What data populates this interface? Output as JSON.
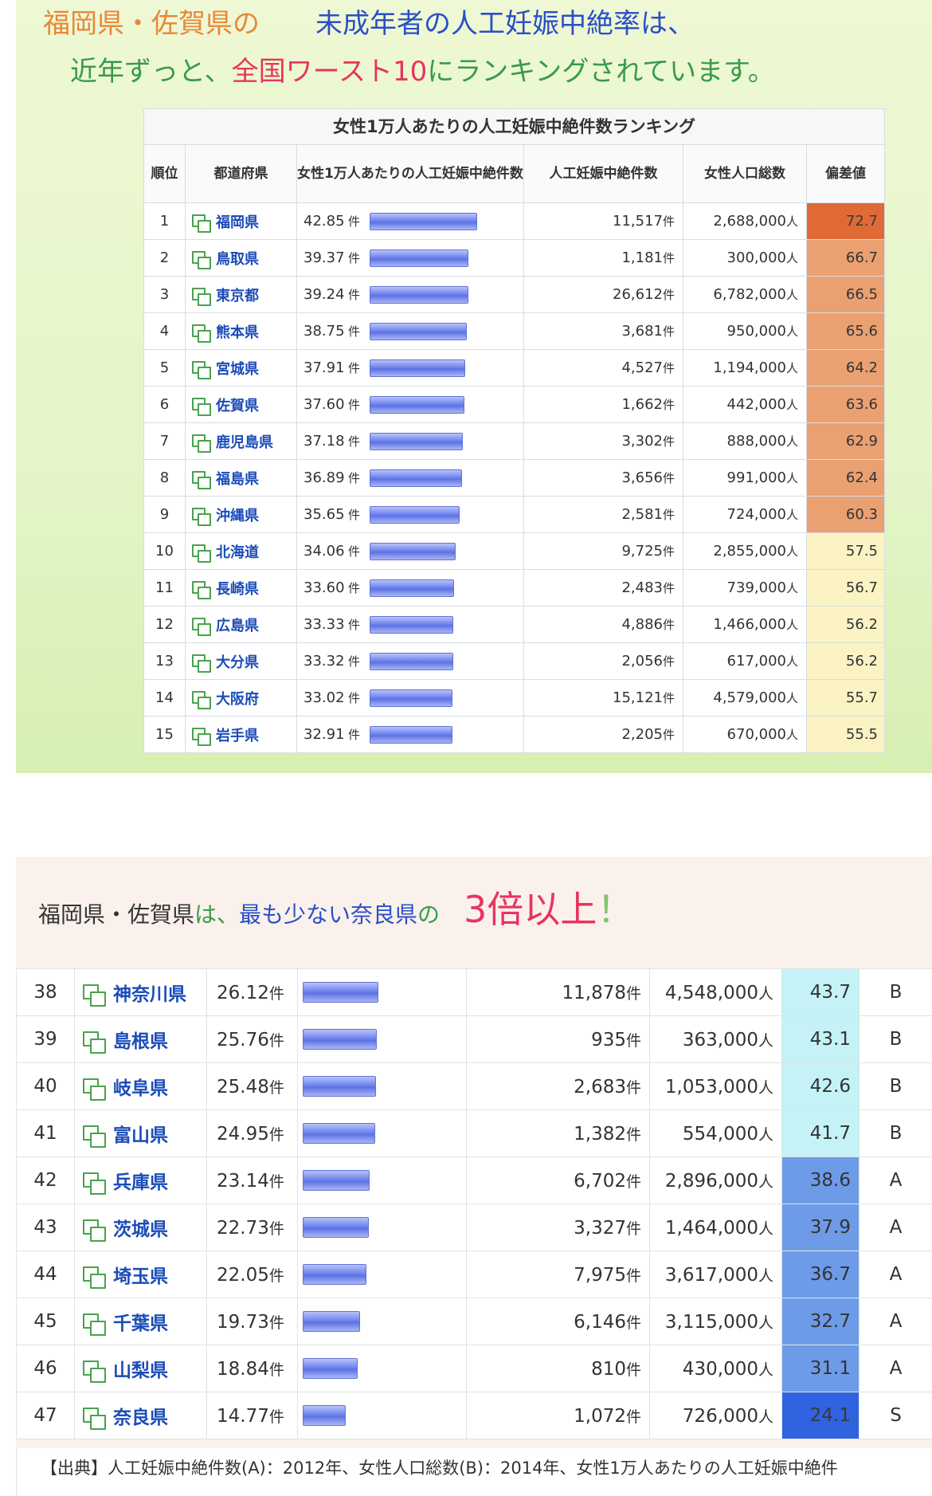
{
  "headline": {
    "line1": [
      {
        "text": "福岡県・佐賀県の",
        "color": "#e8873a"
      },
      {
        "text": "未成年者の人工妊娠中絶率は、",
        "color": "#2a4fc7"
      }
    ],
    "line2": [
      {
        "text": "近年ずっと、",
        "color": "#3a9a4a"
      },
      {
        "text": "全国ワースト10",
        "color": "#e8345f"
      },
      {
        "text": "にランキングされています。",
        "color": "#3a9a4a"
      }
    ]
  },
  "ranking_table_top": {
    "caption": "女性1万人あたりの人工妊娠中絶件数ランキング",
    "headers": {
      "rank": "順位",
      "prefecture": "都道府県",
      "rate": "女性1万人あたりの人工妊娠中絶件数",
      "count": "人工妊娠中絶件数",
      "population": "女性人口総数",
      "deviation": "偏差値"
    },
    "rows": [
      {
        "rank": "1",
        "pref": "福岡県",
        "rate": "42.85",
        "rate_value": 42.85,
        "count": "11,517",
        "pop": "2,688,000",
        "dev": "72.7",
        "dev_color": "#e06a35"
      },
      {
        "rank": "2",
        "pref": "鳥取県",
        "rate": "39.37",
        "rate_value": 39.37,
        "count": "1,181",
        "pop": "300,000",
        "dev": "66.7",
        "dev_color": "#eaa071"
      },
      {
        "rank": "3",
        "pref": "東京都",
        "rate": "39.24",
        "rate_value": 39.24,
        "count": "26,612",
        "pop": "6,782,000",
        "dev": "66.5",
        "dev_color": "#eaa071"
      },
      {
        "rank": "4",
        "pref": "熊本県",
        "rate": "38.75",
        "rate_value": 38.75,
        "count": "3,681",
        "pop": "950,000",
        "dev": "65.6",
        "dev_color": "#eaa071"
      },
      {
        "rank": "5",
        "pref": "宮城県",
        "rate": "37.91",
        "rate_value": 37.91,
        "count": "4,527",
        "pop": "1,194,000",
        "dev": "64.2",
        "dev_color": "#eaa071"
      },
      {
        "rank": "6",
        "pref": "佐賀県",
        "rate": "37.60",
        "rate_value": 37.6,
        "count": "1,662",
        "pop": "442,000",
        "dev": "63.6",
        "dev_color": "#eaa071"
      },
      {
        "rank": "7",
        "pref": "鹿児島県",
        "rate": "37.18",
        "rate_value": 37.18,
        "count": "3,302",
        "pop": "888,000",
        "dev": "62.9",
        "dev_color": "#eaa071"
      },
      {
        "rank": "8",
        "pref": "福島県",
        "rate": "36.89",
        "rate_value": 36.89,
        "count": "3,656",
        "pop": "991,000",
        "dev": "62.4",
        "dev_color": "#eaa071"
      },
      {
        "rank": "9",
        "pref": "沖縄県",
        "rate": "35.65",
        "rate_value": 35.65,
        "count": "2,581",
        "pop": "724,000",
        "dev": "60.3",
        "dev_color": "#eaa071"
      },
      {
        "rank": "10",
        "pref": "北海道",
        "rate": "34.06",
        "rate_value": 34.06,
        "count": "9,725",
        "pop": "2,855,000",
        "dev": "57.5",
        "dev_color": "#fbf3c4"
      },
      {
        "rank": "11",
        "pref": "長崎県",
        "rate": "33.60",
        "rate_value": 33.6,
        "count": "2,483",
        "pop": "739,000",
        "dev": "56.7",
        "dev_color": "#fbf3c4"
      },
      {
        "rank": "12",
        "pref": "広島県",
        "rate": "33.33",
        "rate_value": 33.33,
        "count": "4,886",
        "pop": "1,466,000",
        "dev": "56.2",
        "dev_color": "#fbf3c4"
      },
      {
        "rank": "13",
        "pref": "大分県",
        "rate": "33.32",
        "rate_value": 33.32,
        "count": "2,056",
        "pop": "617,000",
        "dev": "56.2",
        "dev_color": "#fbf3c4"
      },
      {
        "rank": "14",
        "pref": "大阪府",
        "rate": "33.02",
        "rate_value": 33.02,
        "count": "15,121",
        "pop": "4,579,000",
        "dev": "55.7",
        "dev_color": "#fbf3c4"
      },
      {
        "rank": "15",
        "pref": "岩手県",
        "rate": "32.91",
        "rate_value": 32.91,
        "count": "2,205",
        "pop": "670,000",
        "dev": "55.5",
        "dev_color": "#fbf3c4"
      }
    ]
  },
  "bottom_headline": {
    "part1": "福岡県・佐賀県",
    "part2": "は、",
    "part3": "最も少ない奈良県",
    "part4": "の",
    "part5": "3倍以上",
    "part6": "！",
    "colors": {
      "part1": "#333333",
      "part2": "#3a9a4a",
      "part3": "#2a4fc7",
      "part4": "#3a9a4a",
      "part5": "#e8345f",
      "part6": "#7fc46a"
    }
  },
  "ranking_table_bottom": {
    "rows": [
      {
        "rank": "38",
        "pref": "神奈川県",
        "rate": "26.12",
        "rate_value": 26.12,
        "count": "11,878",
        "pop": "4,548,000",
        "dev": "43.7",
        "grade": "B",
        "dev_color": "#c4f2f6"
      },
      {
        "rank": "39",
        "pref": "島根県",
        "rate": "25.76",
        "rate_value": 25.76,
        "count": "935",
        "pop": "363,000",
        "dev": "43.1",
        "grade": "B",
        "dev_color": "#c4f2f6"
      },
      {
        "rank": "40",
        "pref": "岐阜県",
        "rate": "25.48",
        "rate_value": 25.48,
        "count": "2,683",
        "pop": "1,053,000",
        "dev": "42.6",
        "grade": "B",
        "dev_color": "#c4f2f6"
      },
      {
        "rank": "41",
        "pref": "富山県",
        "rate": "24.95",
        "rate_value": 24.95,
        "count": "1,382",
        "pop": "554,000",
        "dev": "41.7",
        "grade": "B",
        "dev_color": "#c4f2f6"
      },
      {
        "rank": "42",
        "pref": "兵庫県",
        "rate": "23.14",
        "rate_value": 23.14,
        "count": "6,702",
        "pop": "2,896,000",
        "dev": "38.6",
        "grade": "A",
        "dev_color": "#6d9be8"
      },
      {
        "rank": "43",
        "pref": "茨城県",
        "rate": "22.73",
        "rate_value": 22.73,
        "count": "3,327",
        "pop": "1,464,000",
        "dev": "37.9",
        "grade": "A",
        "dev_color": "#6d9be8"
      },
      {
        "rank": "44",
        "pref": "埼玉県",
        "rate": "22.05",
        "rate_value": 22.05,
        "count": "7,975",
        "pop": "3,617,000",
        "dev": "36.7",
        "grade": "A",
        "dev_color": "#6d9be8"
      },
      {
        "rank": "45",
        "pref": "千葉県",
        "rate": "19.73",
        "rate_value": 19.73,
        "count": "6,146",
        "pop": "3,115,000",
        "dev": "32.7",
        "grade": "A",
        "dev_color": "#6d9be8"
      },
      {
        "rank": "46",
        "pref": "山梨県",
        "rate": "18.84",
        "rate_value": 18.84,
        "count": "810",
        "pop": "430,000",
        "dev": "31.1",
        "grade": "A",
        "dev_color": "#6d9be8"
      },
      {
        "rank": "47",
        "pref": "奈良県",
        "rate": "14.77",
        "rate_value": 14.77,
        "count": "1,072",
        "pop": "726,000",
        "dev": "24.1",
        "grade": "S",
        "dev_color": "#2f63e0"
      }
    ]
  },
  "units": {
    "ken": "件",
    "nin": "人"
  },
  "source_note": "【出典】人工妊娠中絶件数(A)：2012年、女性人口総数(B)：2014年、女性1万人あたりの人工妊娠中絶件",
  "icons": {
    "prefecture_link": "copy-link-icon"
  }
}
